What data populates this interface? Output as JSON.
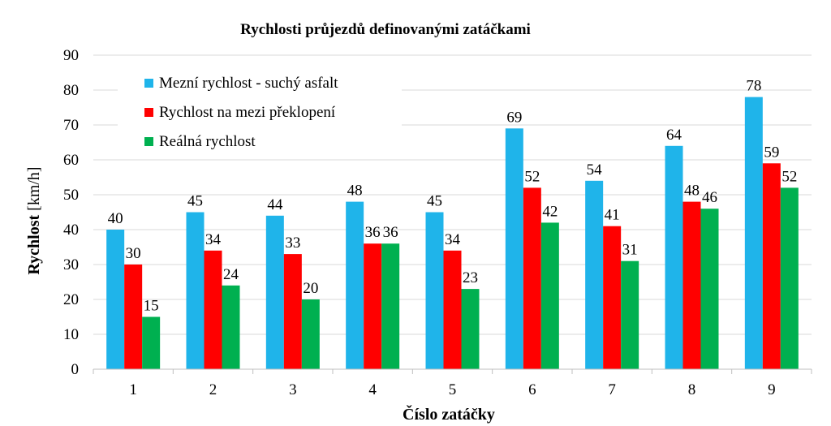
{
  "chart_data": {
    "type": "bar",
    "title": "Rychlosti průjezdů  definovanými zatáčkami",
    "xlabel": "Číslo zatáčky",
    "ylabel_bold": "Rychlost",
    "ylabel_unit": " [km/h]",
    "ylim": [
      0,
      90
    ],
    "yticks": [
      0,
      10,
      20,
      30,
      40,
      50,
      60,
      70,
      80,
      90
    ],
    "grid": true,
    "legend_position": "top-left",
    "categories": [
      "1",
      "2",
      "3",
      "4",
      "5",
      "6",
      "7",
      "8",
      "9"
    ],
    "series": [
      {
        "name": "Mezní rychlost - suchý asfalt",
        "color": "#1fb4ea",
        "values": [
          40,
          45,
          44,
          48,
          45,
          69,
          54,
          64,
          78
        ]
      },
      {
        "name": "Rychlost na mezi překlopení",
        "color": "#ff0000",
        "values": [
          30,
          34,
          33,
          36,
          34,
          52,
          41,
          48,
          59
        ]
      },
      {
        "name": "Reálná rychlost",
        "color": "#00b050",
        "values": [
          15,
          24,
          20,
          36,
          23,
          42,
          31,
          46,
          52
        ]
      }
    ]
  }
}
